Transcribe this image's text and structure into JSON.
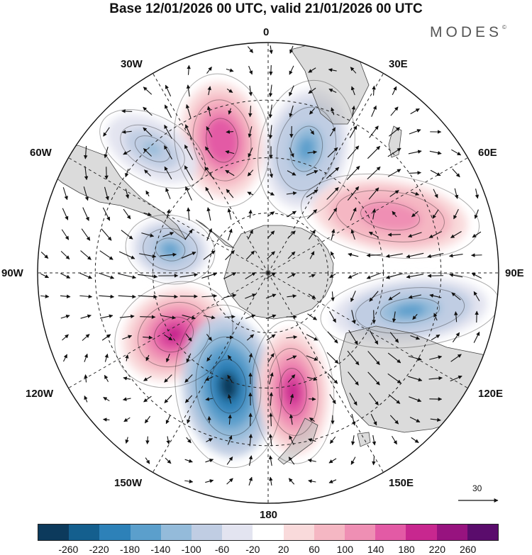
{
  "header": {
    "title": "Base 12/01/2026 00 UTC, valid 21/01/2026 00 UTC",
    "brand": "MODES",
    "brand_mark": "©"
  },
  "map": {
    "projection": "South Polar Stereographic",
    "longitude_labels": {
      "top": "0",
      "top_right": "30E",
      "right_upper": "60E",
      "right": "90E",
      "right_lower": "120E",
      "bottom_right": "150E",
      "bottom": "180",
      "bottom_left": "150W",
      "left_lower": "120W",
      "left": "90W",
      "left_upper": "60W",
      "top_left": "30W"
    },
    "reference_vector": "30",
    "anomaly_centers": [
      {
        "sign": "positive",
        "value": 180,
        "label": "near 10W"
      },
      {
        "sign": "negative",
        "value": -140,
        "label": "near 20E"
      },
      {
        "sign": "negative",
        "value": -100,
        "label": "near 45W"
      },
      {
        "sign": "positive",
        "value": 140,
        "label": "near 65E"
      },
      {
        "sign": "negative",
        "value": -140,
        "label": "near 80W"
      },
      {
        "sign": "negative",
        "value": -140,
        "label": "near 100E"
      },
      {
        "sign": "positive",
        "value": 220,
        "label": "near 115W"
      },
      {
        "sign": "negative",
        "value": -260,
        "label": "near 150W"
      },
      {
        "sign": "positive",
        "value": 220,
        "label": "near 170E"
      }
    ]
  },
  "colorbar": {
    "colors": [
      "#0c3a5c",
      "#145f8e",
      "#2d81b8",
      "#5b9fcc",
      "#94bbda",
      "#c0cde3",
      "#e3e4f0",
      "#ffffff",
      "#f9dadb",
      "#f5b7c3",
      "#ef8fb4",
      "#e35aa5",
      "#c8278f",
      "#97137f",
      "#5a0c6c"
    ],
    "labels": [
      "-260",
      "-220",
      "-180",
      "-140",
      "-100",
      "-60",
      "-20",
      "20",
      "60",
      "100",
      "140",
      "180",
      "220",
      "260"
    ]
  }
}
